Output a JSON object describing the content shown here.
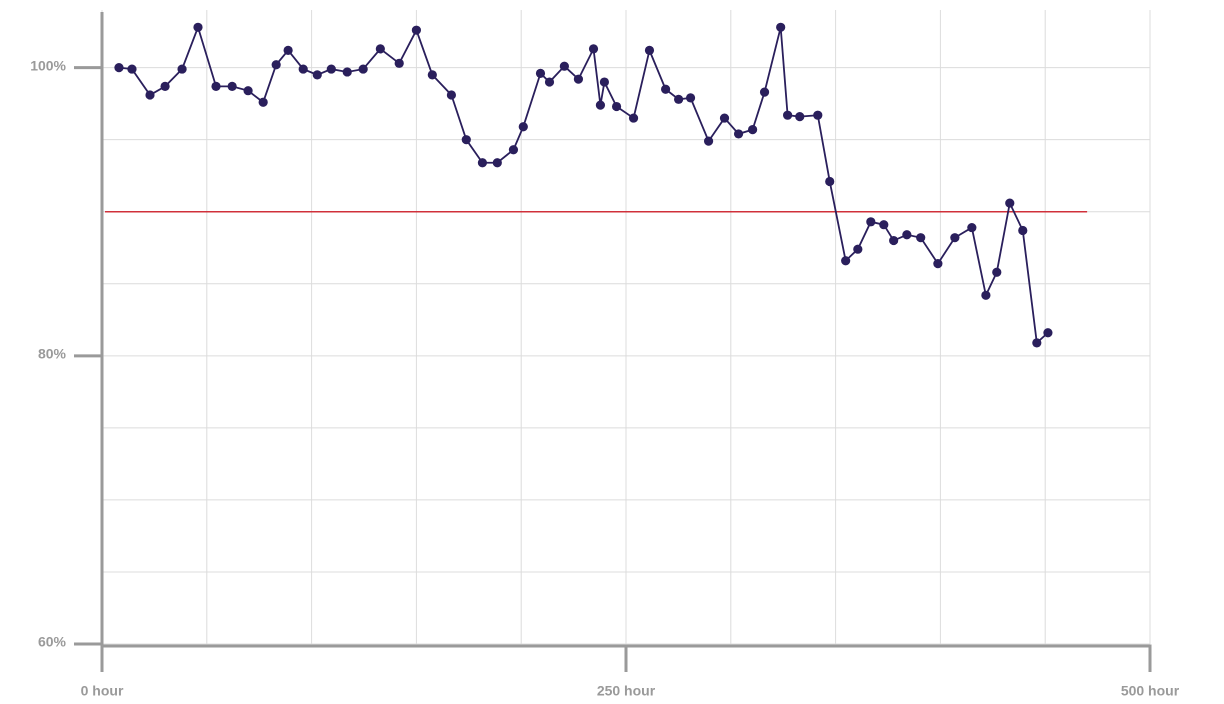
{
  "chart_data": {
    "type": "line",
    "xlim": [
      0,
      500
    ],
    "xticks": [
      {
        "value": 0,
        "label": "0 hour"
      },
      {
        "value": 250,
        "label": "250 hour"
      },
      {
        "value": 500,
        "label": "500 hour"
      }
    ],
    "xminor": [
      50,
      100,
      150,
      200,
      300,
      350,
      400,
      450
    ],
    "ylim": [
      60,
      104
    ],
    "yticks": [
      {
        "value": 60,
        "label": "60%"
      },
      {
        "value": 80,
        "label": "80%"
      },
      {
        "value": 100,
        "label": "100%"
      }
    ],
    "yminor": [
      65,
      70,
      75,
      85,
      90,
      95
    ],
    "grid": true,
    "threshold": {
      "value": 90,
      "xlim": [
        0,
        470
      ],
      "color": "#d0303a"
    },
    "series": [
      {
        "color": "#2a1f5c",
        "x": [
          8.1,
          14.3,
          22.9,
          30.1,
          38.2,
          45.8,
          54.4,
          62.1,
          69.7,
          76.9,
          83.1,
          88.8,
          96.0,
          102.7,
          109.4,
          117.0,
          124.6,
          132.8,
          141.8,
          150.0,
          157.6,
          166.7,
          173.8,
          181.5,
          188.6,
          196.3,
          201.0,
          209.2,
          213.5,
          220.6,
          227.3,
          234.5,
          237.8,
          239.7,
          245.5,
          253.6,
          261.2,
          268.9,
          275.1,
          280.8,
          289.4,
          297.0,
          303.7,
          310.4,
          316.1,
          323.8,
          327.1,
          332.9,
          341.5,
          347.2,
          354.8,
          360.6,
          366.8,
          373.0,
          377.7,
          384.0,
          390.6,
          398.8,
          406.9,
          415.0,
          421.7,
          426.9,
          433.1,
          439.3,
          446.0,
          451.3
        ],
        "values": [
          100,
          99.9,
          98.1,
          98.7,
          99.9,
          102.8,
          98.7,
          98.7,
          98.4,
          97.6,
          100.2,
          101.2,
          99.9,
          99.5,
          99.9,
          99.7,
          99.9,
          101.3,
          100.3,
          102.6,
          99.5,
          98.1,
          95.0,
          93.4,
          93.4,
          94.3,
          95.9,
          99.6,
          99.0,
          100.1,
          99.2,
          101.3,
          97.4,
          99.0,
          97.3,
          96.5,
          101.2,
          98.5,
          97.8,
          97.9,
          94.9,
          96.5,
          95.4,
          95.7,
          98.3,
          102.8,
          96.7,
          96.6,
          96.7,
          92.1,
          86.6,
          87.4,
          89.3,
          89.1,
          88.0,
          88.4,
          88.2,
          86.4,
          88.2,
          88.9,
          84.2,
          85.8,
          90.6,
          88.7,
          80.9,
          81.6
        ]
      }
    ]
  }
}
